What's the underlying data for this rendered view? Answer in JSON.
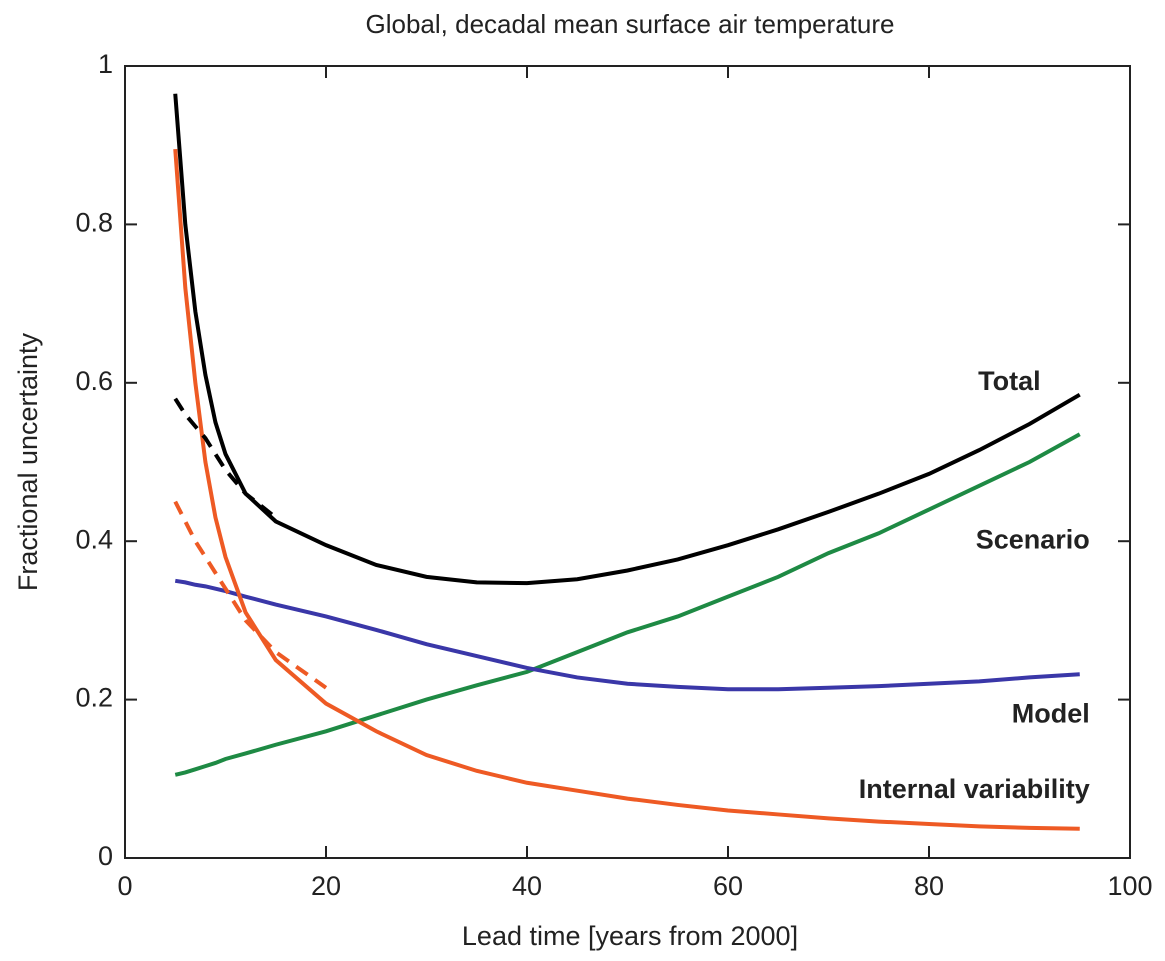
{
  "chart_data": {
    "type": "line",
    "title": "Global, decadal mean surface air temperature",
    "x_label": "Lead time  [years from 2000]",
    "y_label": "Fractional uncertainty",
    "x": [
      5,
      6,
      7,
      8,
      9,
      10,
      12,
      15,
      20,
      25,
      30,
      35,
      40,
      45,
      50,
      55,
      60,
      65,
      70,
      75,
      80,
      85,
      90,
      95
    ],
    "series": [
      {
        "name": "Total",
        "color": "#000000",
        "values": [
          0.965,
          0.8,
          0.69,
          0.61,
          0.55,
          0.51,
          0.46,
          0.425,
          0.395,
          0.37,
          0.355,
          0.348,
          0.347,
          0.352,
          0.363,
          0.377,
          0.395,
          0.415,
          0.437,
          0.46,
          0.485,
          0.515,
          0.548,
          0.585
        ]
      },
      {
        "name": "Scenario",
        "color": "#1e8a44",
        "values": [
          0.105,
          0.108,
          0.112,
          0.116,
          0.12,
          0.125,
          0.132,
          0.143,
          0.16,
          0.18,
          0.2,
          0.218,
          0.235,
          0.26,
          0.285,
          0.305,
          0.33,
          0.355,
          0.385,
          0.41,
          0.44,
          0.47,
          0.5,
          0.535
        ]
      },
      {
        "name": "Model",
        "color": "#3a37a8",
        "values": [
          0.35,
          0.348,
          0.345,
          0.343,
          0.34,
          0.337,
          0.33,
          0.32,
          0.305,
          0.288,
          0.27,
          0.255,
          0.24,
          0.228,
          0.22,
          0.216,
          0.213,
          0.213,
          0.215,
          0.217,
          0.22,
          0.223,
          0.228,
          0.232
        ]
      },
      {
        "name": "Internal variability",
        "color": "#ee5a24",
        "values": [
          0.895,
          0.72,
          0.6,
          0.5,
          0.43,
          0.38,
          0.31,
          0.25,
          0.195,
          0.16,
          0.13,
          0.11,
          0.095,
          0.085,
          0.075,
          0.067,
          0.06,
          0.055,
          0.05,
          0.046,
          0.043,
          0.04,
          0.038,
          0.037
        ]
      },
      {
        "color": "#000000",
        "dashed": true,
        "values": [
          0.58,
          0.56,
          0.545,
          0.53,
          0.51,
          0.49,
          0.46,
          0.43,
          null,
          null,
          null,
          null,
          null,
          null,
          null,
          null,
          null,
          null,
          null,
          null,
          null,
          null,
          null,
          null
        ]
      },
      {
        "color": "#ee5a24",
        "dashed": true,
        "values": [
          0.45,
          0.425,
          0.4,
          0.38,
          0.36,
          0.34,
          0.3,
          0.26,
          0.215,
          null,
          null,
          null,
          null,
          null,
          null,
          null,
          null,
          null,
          null,
          null,
          null,
          null,
          null,
          null
        ]
      }
    ],
    "xlim": [
      0,
      100
    ],
    "xticks": [
      0,
      20,
      40,
      60,
      80,
      100
    ],
    "ylim": [
      0,
      1
    ],
    "yticks": [
      0,
      0.2,
      0.4,
      0.6,
      0.8,
      1
    ]
  }
}
